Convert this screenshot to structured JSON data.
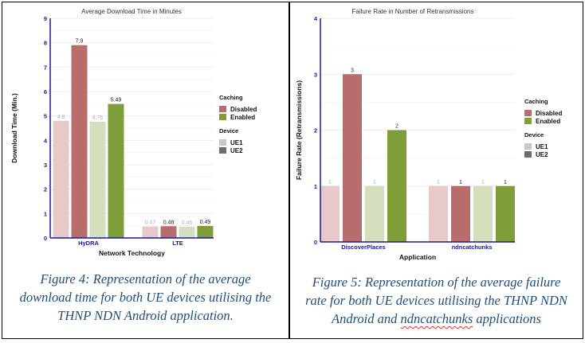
{
  "chart_data": [
    {
      "type": "bar",
      "title": "Average Download Time in Minutes",
      "xlabel": "Network Technology",
      "ylabel": "Download Time (Min.)",
      "ylim": [
        0,
        9
      ],
      "yticks": [
        "0",
        "1",
        "2",
        "3",
        "4",
        "5",
        "6",
        "7",
        "8",
        "9"
      ],
      "categories": [
        "HyDRA",
        "LTE"
      ],
      "series": [
        {
          "name": "Disabled / UE1",
          "caching": "Disabled",
          "device": "UE1",
          "values": [
            4.8,
            0.47
          ],
          "labels": [
            "4.8",
            "0.47"
          ]
        },
        {
          "name": "Disabled / UE2",
          "caching": "Disabled",
          "device": "UE2",
          "values": [
            7.9,
            0.48
          ],
          "labels": [
            "7.9",
            "0.48"
          ]
        },
        {
          "name": "Enabled / UE1",
          "caching": "Enabled",
          "device": "UE1",
          "values": [
            4.76,
            0.46
          ],
          "labels": [
            "4.76",
            "0.46"
          ]
        },
        {
          "name": "Enabled / UE2",
          "caching": "Enabled",
          "device": "UE2",
          "values": [
            5.49,
            0.49
          ],
          "labels": [
            "5.49",
            "0.49"
          ]
        }
      ],
      "legend": {
        "caching_title": "Caching",
        "caching": [
          {
            "label": "Disabled",
            "color": "#b86d6d"
          },
          {
            "label": "Enabled",
            "color": "#7f9e3a"
          }
        ],
        "device_title": "Device",
        "device": [
          {
            "label": "UE1",
            "color": "#c8c8c8"
          },
          {
            "label": "UE2",
            "color": "#6e6e6e"
          }
        ]
      },
      "caption": [
        "Figure 4: Representation of the average",
        "download time for both UE devices utilising the",
        "THNP NDN Android application."
      ]
    },
    {
      "type": "bar",
      "title": "Failure Rate in Number of Retransmissions",
      "xlabel": "Application",
      "ylabel": "Failure Rate (Retransmissions)",
      "ylim": [
        0,
        4
      ],
      "yticks": [
        "0",
        "1",
        "2",
        "3",
        "4"
      ],
      "categories": [
        "DiscoverPlaces",
        "ndncatchunks"
      ],
      "series": [
        {
          "name": "Disabled / UE1",
          "caching": "Disabled",
          "device": "UE1",
          "values": [
            1,
            1
          ],
          "labels": [
            "1",
            "1"
          ]
        },
        {
          "name": "Disabled / UE2",
          "caching": "Disabled",
          "device": "UE2",
          "values": [
            3,
            1
          ],
          "labels": [
            "3",
            "1"
          ]
        },
        {
          "name": "Enabled / UE1",
          "caching": "Enabled",
          "device": "UE1",
          "values": [
            1,
            1
          ],
          "labels": [
            "1",
            "1"
          ]
        },
        {
          "name": "Enabled / UE2",
          "caching": "Enabled",
          "device": "UE2",
          "values": [
            2,
            1
          ],
          "labels": [
            "2",
            "1"
          ]
        }
      ],
      "legend": {
        "caching_title": "Caching",
        "caching": [
          {
            "label": "Disabled",
            "color": "#b86d6d"
          },
          {
            "label": "Enabled",
            "color": "#7f9e3a"
          }
        ],
        "device_title": "Device",
        "device": [
          {
            "label": "UE1",
            "color": "#c8c8c8"
          },
          {
            "label": "UE2",
            "color": "#6e6e6e"
          }
        ]
      },
      "caption": [
        "Figure 5: Representation of the average failure",
        "rate for both UE devices utilising the THNP NDN",
        "Android and ",
        "ndncatchunks",
        " applications"
      ]
    }
  ],
  "colors": {
    "disabled_ue1": "#e8c9c9",
    "disabled_ue2": "#b86d6d",
    "enabled_ue1": "#d3dfbd",
    "enabled_ue2": "#7f9e3a",
    "axis": "#1a1a9a",
    "caption": "#1f4e79"
  }
}
